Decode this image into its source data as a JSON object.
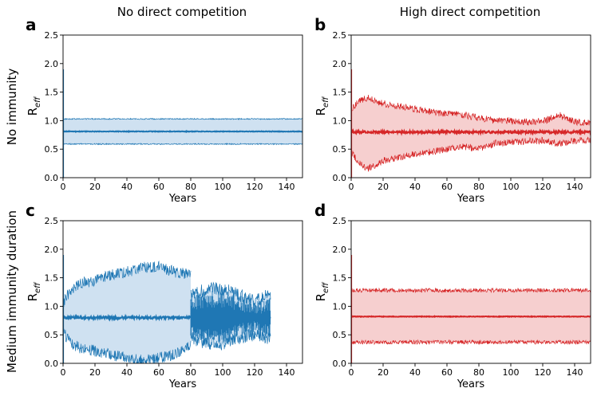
{
  "column_titles": [
    "No direct competition",
    "High direct competition"
  ],
  "row_titles": [
    "No immunity",
    "Medium immunity duration"
  ],
  "colors": {
    "blue_line": "#1f77b4",
    "blue_fill": "#cfe1f1",
    "red_line": "#d62728",
    "red_fill": "#f6cfcf"
  },
  "chart_data": [
    {
      "panel": "a",
      "type": "area",
      "color": "blue",
      "xlabel": "Years",
      "ylabel": "R",
      "ylabel_sub": "eff",
      "xlim": [
        0,
        150
      ],
      "ylim": [
        0,
        2.5
      ],
      "xticks": [
        0,
        20,
        40,
        60,
        80,
        100,
        120,
        140
      ],
      "yticks": [
        0.0,
        0.5,
        1.0,
        1.5,
        2.0,
        2.5
      ],
      "xtick_labels": [
        "0",
        "20",
        "40",
        "60",
        "80",
        "100",
        "120",
        "140"
      ],
      "ytick_labels": [
        "0.0",
        "0.5",
        "1.0",
        "1.5",
        "2.0",
        "2.5"
      ],
      "x_end": 150,
      "segments": [
        {
          "x": [
            0,
            150
          ],
          "median": [
            0.81,
            0.81
          ],
          "upper": [
            1.03,
            1.03
          ],
          "lower": [
            0.59,
            0.59
          ],
          "noise": 0.01,
          "median_noise": 0.005
        }
      ]
    },
    {
      "panel": "b",
      "type": "area",
      "color": "red",
      "xlabel": "Years",
      "ylabel": "R",
      "ylabel_sub": "eff",
      "xlim": [
        0,
        150
      ],
      "ylim": [
        0,
        2.5
      ],
      "xticks": [
        0,
        20,
        40,
        60,
        80,
        100,
        120,
        140
      ],
      "yticks": [
        0.0,
        0.5,
        1.0,
        1.5,
        2.0,
        2.5
      ],
      "xtick_labels": [
        "0",
        "20",
        "40",
        "60",
        "80",
        "100",
        "120",
        "140"
      ],
      "ytick_labels": [
        "0.0",
        "0.5",
        "1.0",
        "1.5",
        "2.0",
        "2.5"
      ],
      "x_end": 150,
      "segments": [
        {
          "x": [
            0,
            5,
            10,
            20,
            30,
            40,
            50,
            60,
            70,
            80,
            90,
            100,
            110,
            120,
            130,
            140,
            150
          ],
          "median": [
            0.8,
            0.8,
            0.8,
            0.8,
            0.8,
            0.8,
            0.8,
            0.8,
            0.8,
            0.8,
            0.8,
            0.8,
            0.8,
            0.8,
            0.8,
            0.8,
            0.8
          ],
          "upper": [
            1.2,
            1.35,
            1.4,
            1.3,
            1.25,
            1.2,
            1.15,
            1.12,
            1.1,
            1.05,
            1.0,
            1.0,
            0.98,
            0.98,
            1.1,
            0.98,
            0.96
          ],
          "lower": [
            0.45,
            0.25,
            0.15,
            0.3,
            0.35,
            0.42,
            0.45,
            0.5,
            0.55,
            0.5,
            0.6,
            0.62,
            0.64,
            0.65,
            0.6,
            0.65,
            0.66
          ],
          "noise": 0.06,
          "median_noise": 0.02
        }
      ]
    },
    {
      "panel": "c",
      "type": "area",
      "color": "blue",
      "xlabel": "Years",
      "ylabel": "R",
      "ylabel_sub": "eff",
      "xlim": [
        0,
        150
      ],
      "ylim": [
        0,
        2.5
      ],
      "xticks": [
        0,
        20,
        40,
        60,
        80,
        100,
        120,
        140
      ],
      "yticks": [
        0.0,
        0.5,
        1.0,
        1.5,
        2.0,
        2.5
      ],
      "xtick_labels": [
        "0",
        "20",
        "40",
        "60",
        "80",
        "100",
        "120",
        "140"
      ],
      "ytick_labels": [
        "0.0",
        "0.5",
        "1.0",
        "1.5",
        "2.0",
        "2.5"
      ],
      "x_end": 130,
      "segments": [
        {
          "x": [
            0,
            5,
            10,
            20,
            30,
            40,
            50,
            60,
            70,
            80
          ],
          "median": [
            0.8,
            0.8,
            0.8,
            0.8,
            0.8,
            0.8,
            0.8,
            0.8,
            0.8,
            0.8
          ],
          "upper": [
            1.05,
            1.3,
            1.4,
            1.45,
            1.55,
            1.6,
            1.68,
            1.7,
            1.6,
            1.55
          ],
          "lower": [
            0.55,
            0.35,
            0.28,
            0.22,
            0.15,
            0.1,
            0.05,
            0.1,
            0.15,
            0.3
          ],
          "noise": 0.1,
          "median_noise": 0.02
        },
        {
          "x": [
            80,
            90,
            100,
            110,
            120,
            130
          ],
          "median": [
            0.82,
            0.82,
            0.82,
            0.82,
            0.8,
            0.8
          ],
          "upper": [
            1.2,
            1.3,
            1.3,
            1.2,
            1.1,
            1.2
          ],
          "lower": [
            0.45,
            0.35,
            0.35,
            0.45,
            0.5,
            0.45
          ],
          "noise": 0.12,
          "median_noise": 0.1
        }
      ]
    },
    {
      "panel": "d",
      "type": "area",
      "color": "red",
      "xlabel": "Years",
      "ylabel": "R",
      "ylabel_sub": "eff",
      "xlim": [
        0,
        150
      ],
      "ylim": [
        0,
        2.5
      ],
      "xticks": [
        0,
        20,
        40,
        60,
        80,
        100,
        120,
        140
      ],
      "yticks": [
        0.0,
        0.5,
        1.0,
        1.5,
        2.0,
        2.5
      ],
      "xtick_labels": [
        "0",
        "20",
        "40",
        "60",
        "80",
        "100",
        "120",
        "140"
      ],
      "ytick_labels": [
        "0.0",
        "0.5",
        "1.0",
        "1.5",
        "2.0",
        "2.5"
      ],
      "x_end": 150,
      "segments": [
        {
          "x": [
            0,
            150
          ],
          "median": [
            0.82,
            0.82
          ],
          "upper": [
            1.28,
            1.28
          ],
          "lower": [
            0.37,
            0.37
          ],
          "noise": 0.035,
          "median_noise": 0.005
        }
      ]
    }
  ]
}
